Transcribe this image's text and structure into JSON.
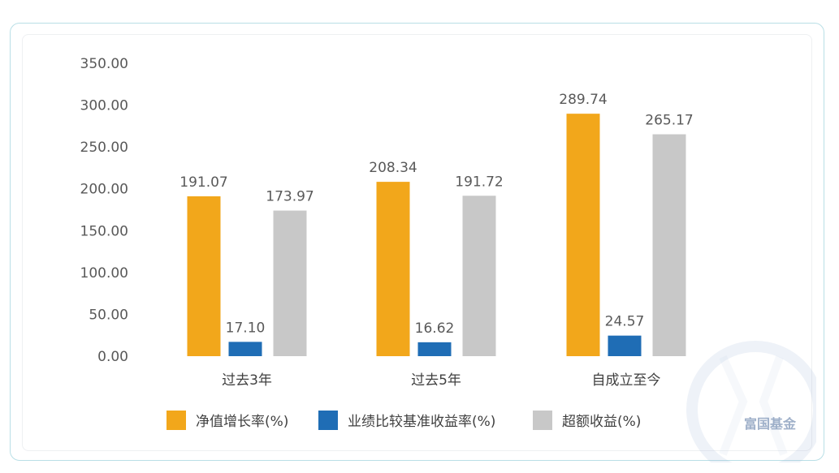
{
  "chart_data": {
    "type": "bar",
    "categories": [
      "过去3年",
      "过去5年",
      "自成立至今"
    ],
    "series": [
      {
        "name": "净值增长率(%)",
        "color": "#F2A71B",
        "values": [
          191.07,
          208.34,
          289.74
        ]
      },
      {
        "name": "业绩比较基准收益率(%)",
        "color": "#1F6DB5",
        "values": [
          17.1,
          16.62,
          24.57
        ]
      },
      {
        "name": "超额收益(%)",
        "color": "#C8C8C8",
        "values": [
          173.97,
          191.72,
          265.17
        ]
      }
    ],
    "ylim": [
      0,
      350
    ],
    "yticks": [
      "0.00",
      "50.00",
      "100.00",
      "150.00",
      "200.00",
      "250.00",
      "300.00",
      "350.00"
    ],
    "grid": false,
    "legend_position": "bottom",
    "title": "",
    "xlabel": "",
    "ylabel": ""
  },
  "watermark": {
    "text": "富国基金",
    "color": "#7f96b8"
  }
}
